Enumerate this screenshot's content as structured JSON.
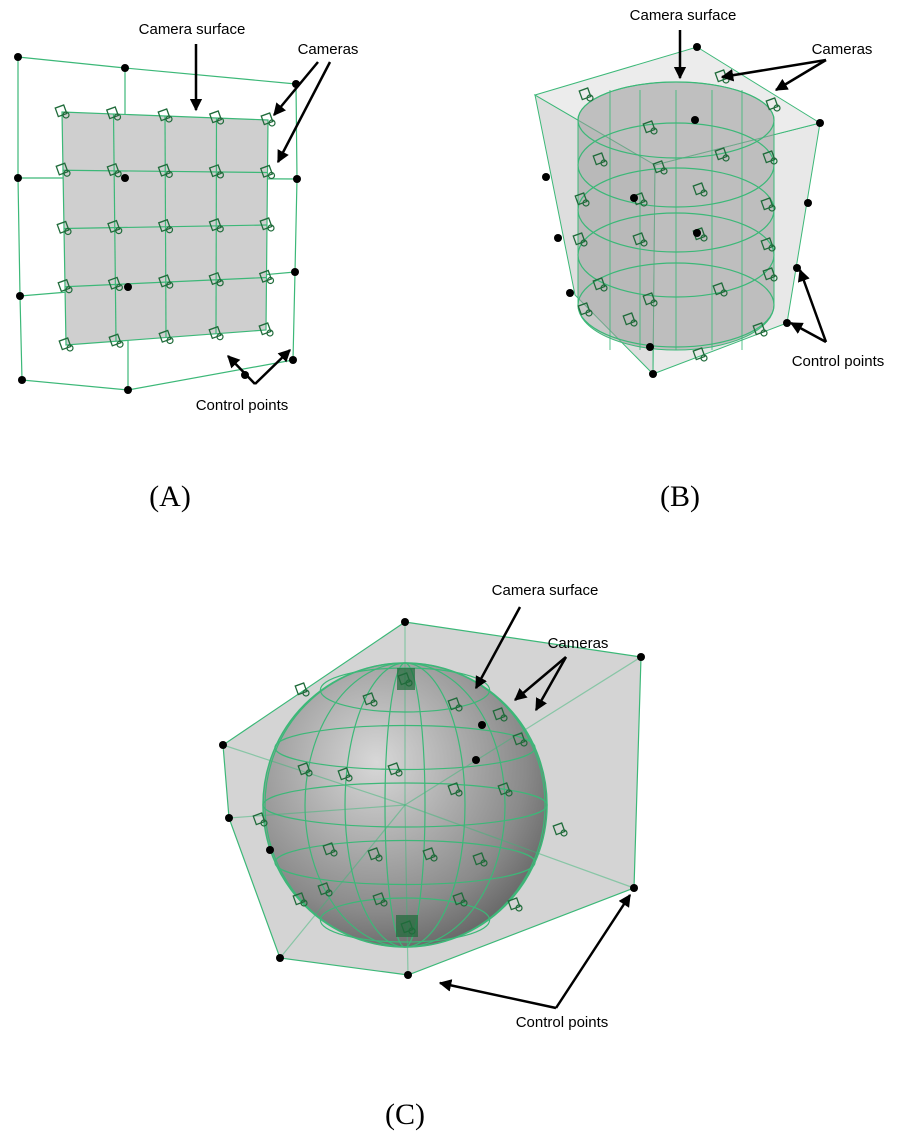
{
  "panels": [
    {
      "label": "(A)",
      "camera_surface": "Camera surface",
      "cameras": "Cameras",
      "control_points": "Control points"
    },
    {
      "label": "(B)",
      "camera_surface": "Camera surface",
      "cameras": "Cameras",
      "control_points": "Control points"
    },
    {
      "label": "(C)",
      "camera_surface": "Camera surface",
      "cameras": "Cameras",
      "control_points": "Control points"
    }
  ]
}
